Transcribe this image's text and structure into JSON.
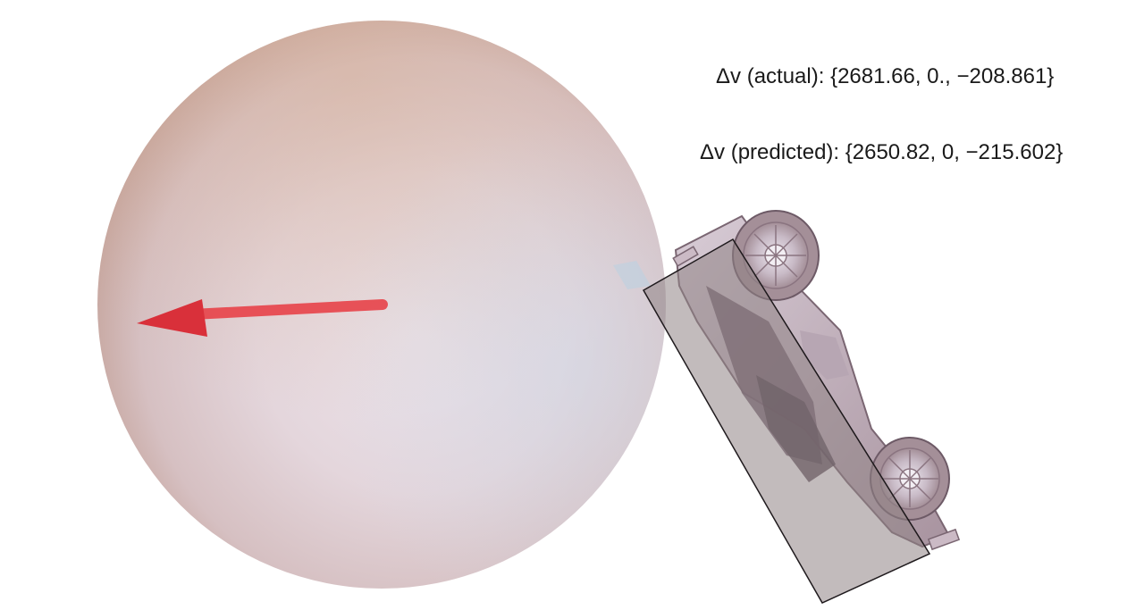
{
  "labels": {
    "actual": "Δv (actual): {2681.66, 0., −208.861}",
    "predicted": "Δv (predicted): {2650.82, 0, −215.602}"
  },
  "colors": {
    "background": "#ffffff",
    "ball_highlight": "#ece3ea",
    "ball_edge": "#bf9a8e",
    "arrow": "#e8434a",
    "hitbox_fill": "#8f8385",
    "car_body": "#c9bcc6",
    "car_dark": "#6e5a6a"
  },
  "icons": {
    "ball": "sphere",
    "arrow": "arrow-left",
    "car": "car",
    "hitbox": "oriented-box"
  }
}
